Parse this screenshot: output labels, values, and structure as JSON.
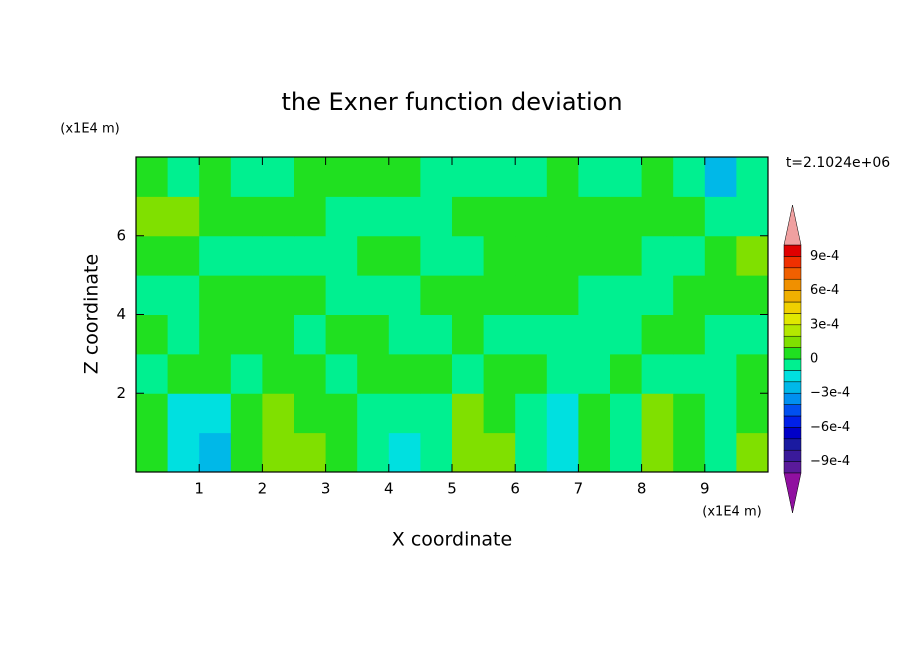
{
  "chart_data": {
    "type": "contour",
    "title": "the Exner function deviation",
    "x_label": "X coordinate",
    "y_label": "Z coordinate",
    "x_unit": "(x1E4 m)",
    "y_unit": "(x1E4 m)",
    "annotation": "t=2.1024e+06",
    "xlim": [
      0,
      10
    ],
    "ylim": [
      0,
      8
    ],
    "xticks": [
      1,
      2,
      3,
      4,
      5,
      6,
      7,
      8,
      9
    ],
    "yticks": [
      2,
      4,
      6
    ],
    "x": [
      0.25,
      0.75,
      1.25,
      1.75,
      2.25,
      2.75,
      3.25,
      3.75,
      4.25,
      4.75,
      5.25,
      5.75,
      6.25,
      6.75,
      7.25,
      7.75,
      8.25,
      8.75,
      9.25,
      9.75
    ],
    "y": [
      0.5,
      1.5,
      2.5,
      3.5,
      4.5,
      5.5,
      6.5,
      7.5
    ],
    "z": [
      [
        5e-05,
        -0.00015,
        -0.00025,
        5e-05,
        0.00015,
        0.00015,
        5e-05,
        -5e-05,
        -0.00015,
        -5e-05,
        0.00015,
        0.00015,
        -5e-05,
        -0.00015,
        5e-05,
        -5e-05,
        0.00015,
        5e-05,
        -5e-05,
        0.00015
      ],
      [
        5e-05,
        -0.00015,
        -0.00015,
        5e-05,
        0.00015,
        5e-05,
        5e-05,
        -5e-05,
        -5e-05,
        -5e-05,
        0.00015,
        5e-05,
        -5e-05,
        -0.00015,
        5e-05,
        -5e-05,
        0.00015,
        5e-05,
        -5e-05,
        5e-05
      ],
      [
        -5e-05,
        5e-05,
        5e-05,
        -5e-05,
        5e-05,
        5e-05,
        -5e-05,
        5e-05,
        5e-05,
        5e-05,
        -5e-05,
        5e-05,
        5e-05,
        -5e-05,
        -5e-05,
        5e-05,
        -5e-05,
        -5e-05,
        -5e-05,
        5e-05
      ],
      [
        5e-05,
        -5e-05,
        5e-05,
        5e-05,
        5e-05,
        -5e-05,
        5e-05,
        5e-05,
        -5e-05,
        -5e-05,
        5e-05,
        -5e-05,
        -5e-05,
        -5e-05,
        -5e-05,
        -5e-05,
        5e-05,
        5e-05,
        -5e-05,
        -5e-05
      ],
      [
        -5e-05,
        -5e-05,
        5e-05,
        5e-05,
        5e-05,
        5e-05,
        -5e-05,
        -5e-05,
        -5e-05,
        5e-05,
        5e-05,
        5e-05,
        5e-05,
        5e-05,
        -5e-05,
        -5e-05,
        -5e-05,
        5e-05,
        5e-05,
        5e-05
      ],
      [
        5e-05,
        5e-05,
        -5e-05,
        -5e-05,
        -5e-05,
        -5e-05,
        -5e-05,
        5e-05,
        5e-05,
        -5e-05,
        -5e-05,
        5e-05,
        5e-05,
        5e-05,
        5e-05,
        5e-05,
        -5e-05,
        -5e-05,
        5e-05,
        0.00015
      ],
      [
        0.00015,
        0.00015,
        5e-05,
        5e-05,
        5e-05,
        5e-05,
        -5e-05,
        -5e-05,
        -5e-05,
        -5e-05,
        5e-05,
        5e-05,
        5e-05,
        5e-05,
        5e-05,
        5e-05,
        5e-05,
        5e-05,
        -5e-05,
        -5e-05
      ],
      [
        5e-05,
        -5e-05,
        5e-05,
        -5e-05,
        -5e-05,
        5e-05,
        5e-05,
        5e-05,
        5e-05,
        -5e-05,
        -5e-05,
        -5e-05,
        -5e-05,
        5e-05,
        -5e-05,
        -5e-05,
        5e-05,
        -5e-05,
        -0.00025,
        -5e-05
      ]
    ],
    "levels": [
      -0.001,
      -0.0009,
      -0.0008,
      -0.0007,
      -0.0006,
      -0.0005,
      -0.0004,
      -0.0003,
      -0.0002,
      -0.0001,
      0,
      0.0001,
      0.0002,
      0.0003,
      0.0004,
      0.0005,
      0.0006,
      0.0007,
      0.0008,
      0.0009,
      0.001
    ],
    "colors": [
      "#5a1a9a",
      "#3a1a9a",
      "#1a1aa0",
      "#0000c8",
      "#0020e8",
      "#0050f0",
      "#0090f0",
      "#00b8e8",
      "#00e0e0",
      "#00f090",
      "#20e020",
      "#80e000",
      "#b4e800",
      "#e0e800",
      "#f0d000",
      "#f0b000",
      "#f09000",
      "#f06000",
      "#f03000",
      "#e00000"
    ],
    "extend_colors": [
      "#9010a0",
      "#f0a0a0"
    ],
    "cticks": [
      {
        "value": 0.0009,
        "label": "9e-4"
      },
      {
        "value": 0.0006,
        "label": "6e-4"
      },
      {
        "value": 0.0003,
        "label": "3e-4"
      },
      0,
      {
        "value": -0.0003,
        "label": "−3e-4"
      },
      {
        "value": -0.0006,
        "label": "−6e-4"
      },
      {
        "value": -0.0009,
        "label": "−9e-4"
      }
    ]
  }
}
